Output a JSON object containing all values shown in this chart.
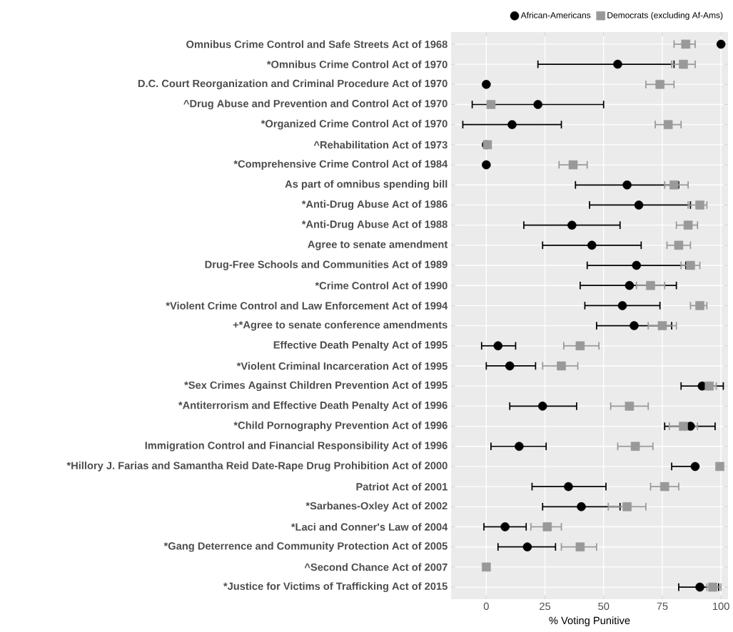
{
  "chart_data": {
    "type": "scatter",
    "orientation": "horizontal",
    "categories": [
      "Omnibus Crime Control and Safe Streets Act of 1968",
      "*Omnibus Crime Control Act of 1970",
      "D.C. Court Reorganization and Criminal Procedure Act of 1970",
      "^Drug Abuse and Prevention and Control Act of 1970",
      "*Organized Crime Control Act of 1970",
      "^Rehabilitation Act of 1973",
      "*Comprehensive Crime Control Act of 1984",
      "As part of omnibus spending bill",
      "*Anti-Drug Abuse Act of 1986",
      "*Anti-Drug Abuse Act of 1988",
      "Agree to senate amendment",
      "Drug-Free Schools and Communities Act of 1989",
      "*Crime Control Act of 1990",
      "*Violent Crime Control and Law Enforcement Act of 1994",
      "+*Agree to senate conference amendments",
      "Effective Death Penalty Act of 1995",
      "*Violent Criminal Incarceration Act of 1995",
      "*Sex Crimes Against Children Prevention Act of 1995",
      "*Antiterrorism and Effective Death Penalty Act of 1996",
      "*Child Pornography Prevention Act of 1996",
      "Immigration Control and Financial Responsibility Act of 1996",
      "*Hillory J. Farias and Samantha Reid Date-Rape Drug Prohibition Act of 2000",
      "Patriot Act of 2001",
      "*Sarbanes-Oxley Act of 2002",
      "*Laci and Conner's Law of 2004",
      "*Gang Deterrence and Community Protection Act of 2005",
      "^Second Chance Act of 2007",
      "*Justice for Victims of Trafficking Act of 2015"
    ],
    "series": [
      {
        "name": "African-Americans",
        "color": "#000000",
        "marker": "circle",
        "values": [
          100,
          56,
          0,
          22,
          11,
          0,
          0,
          60,
          65,
          36.5,
          45,
          64,
          61,
          58,
          63,
          5,
          10,
          92,
          24,
          87,
          14,
          89,
          35,
          40.5,
          8,
          17.5,
          null,
          91
        ],
        "errors": [
          null,
          [
            22,
            80
          ],
          null,
          [
            -6,
            50
          ],
          [
            -10,
            32
          ],
          null,
          null,
          [
            38,
            82
          ],
          [
            44,
            87
          ],
          [
            16,
            57
          ],
          [
            24,
            66
          ],
          [
            43,
            85
          ],
          [
            40,
            81
          ],
          [
            42,
            74
          ],
          [
            47,
            79
          ],
          [
            -2,
            12.5
          ],
          [
            0,
            21
          ],
          [
            83,
            101
          ],
          [
            10,
            38.5
          ],
          [
            76,
            97.5
          ],
          [
            2,
            25.5
          ],
          [
            79,
            89
          ],
          [
            19.5,
            51
          ],
          [
            24,
            57
          ],
          [
            -1,
            17
          ],
          [
            5,
            29.5
          ],
          null,
          [
            82,
            99
          ]
        ]
      },
      {
        "name": "Democrats (excluding Af-Ams)",
        "color": "#999999",
        "marker": "square",
        "values": [
          85,
          84,
          74,
          2,
          77.5,
          0.5,
          37,
          80,
          91,
          86,
          82,
          87,
          70,
          91,
          75,
          40,
          32,
          95,
          61,
          84,
          63.5,
          99.5,
          76,
          60,
          26,
          40,
          0,
          96.5
        ],
        "errors": [
          [
            80,
            89
          ],
          [
            79,
            89
          ],
          [
            68,
            80
          ],
          null,
          [
            72,
            83
          ],
          null,
          [
            31,
            43
          ],
          [
            76,
            86
          ],
          [
            86,
            94
          ],
          [
            81,
            90
          ],
          [
            77,
            87
          ],
          [
            83,
            91
          ],
          [
            64,
            76
          ],
          [
            87,
            94
          ],
          [
            69,
            81
          ],
          [
            33,
            48
          ],
          [
            24,
            39
          ],
          [
            91,
            98
          ],
          [
            53,
            69
          ],
          [
            78,
            90
          ],
          [
            56,
            71
          ],
          null,
          [
            70,
            82
          ],
          [
            52,
            68
          ],
          [
            19,
            32
          ],
          [
            32,
            47
          ],
          null,
          [
            94,
            100
          ]
        ]
      }
    ],
    "xlabel": "% Voting Punitive",
    "xlim": [
      -15,
      103
    ],
    "xticks": [
      0,
      25,
      50,
      75,
      100
    ],
    "grid": true,
    "legend": "top right"
  }
}
